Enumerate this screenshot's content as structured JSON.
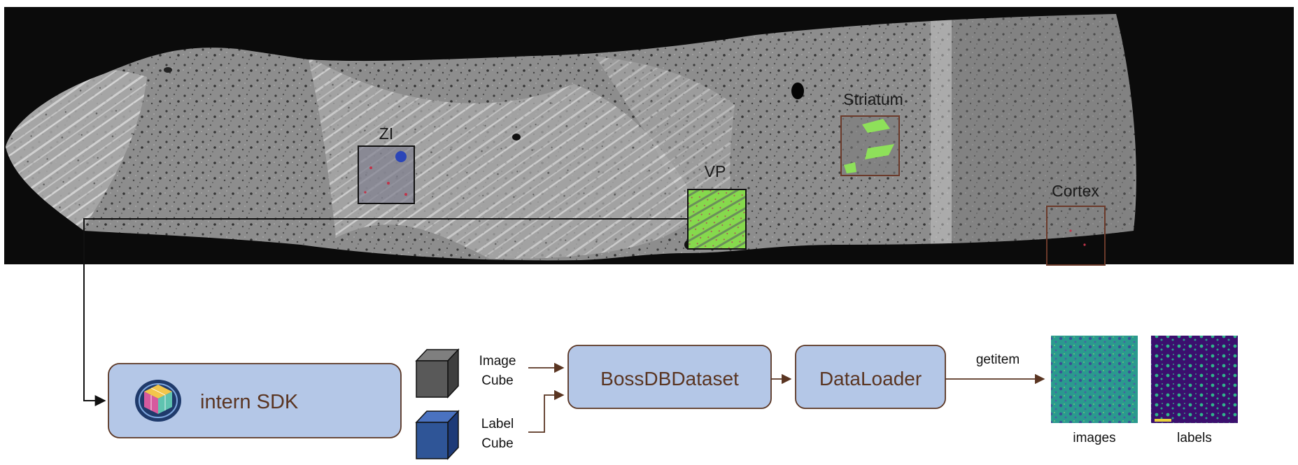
{
  "regions": [
    {
      "key": "zi",
      "label": "ZI"
    },
    {
      "key": "vp",
      "label": "VP"
    },
    {
      "key": "striatum",
      "label": "Striatum"
    },
    {
      "key": "cortex",
      "label": "Cortex"
    }
  ],
  "pipeline": {
    "sdk_label": "intern SDK",
    "image_cube": [
      "Image",
      "Cube"
    ],
    "label_cube": [
      "Label",
      "Cube"
    ],
    "dataset_label": "BossDBDataset",
    "loader_label": "DataLoader",
    "getitem_label": "getitem",
    "images_caption": "images",
    "labels_caption": "labels"
  },
  "colors": {
    "pipeline_box_fill": "#b4c7e7",
    "pipeline_box_text": "#5a3522",
    "connector": "#5a3522",
    "image_cube": "#595959",
    "label_cube": "#2f5597",
    "vp_overlay": "#7ed957",
    "striatum_box": "#6b3a2a"
  }
}
